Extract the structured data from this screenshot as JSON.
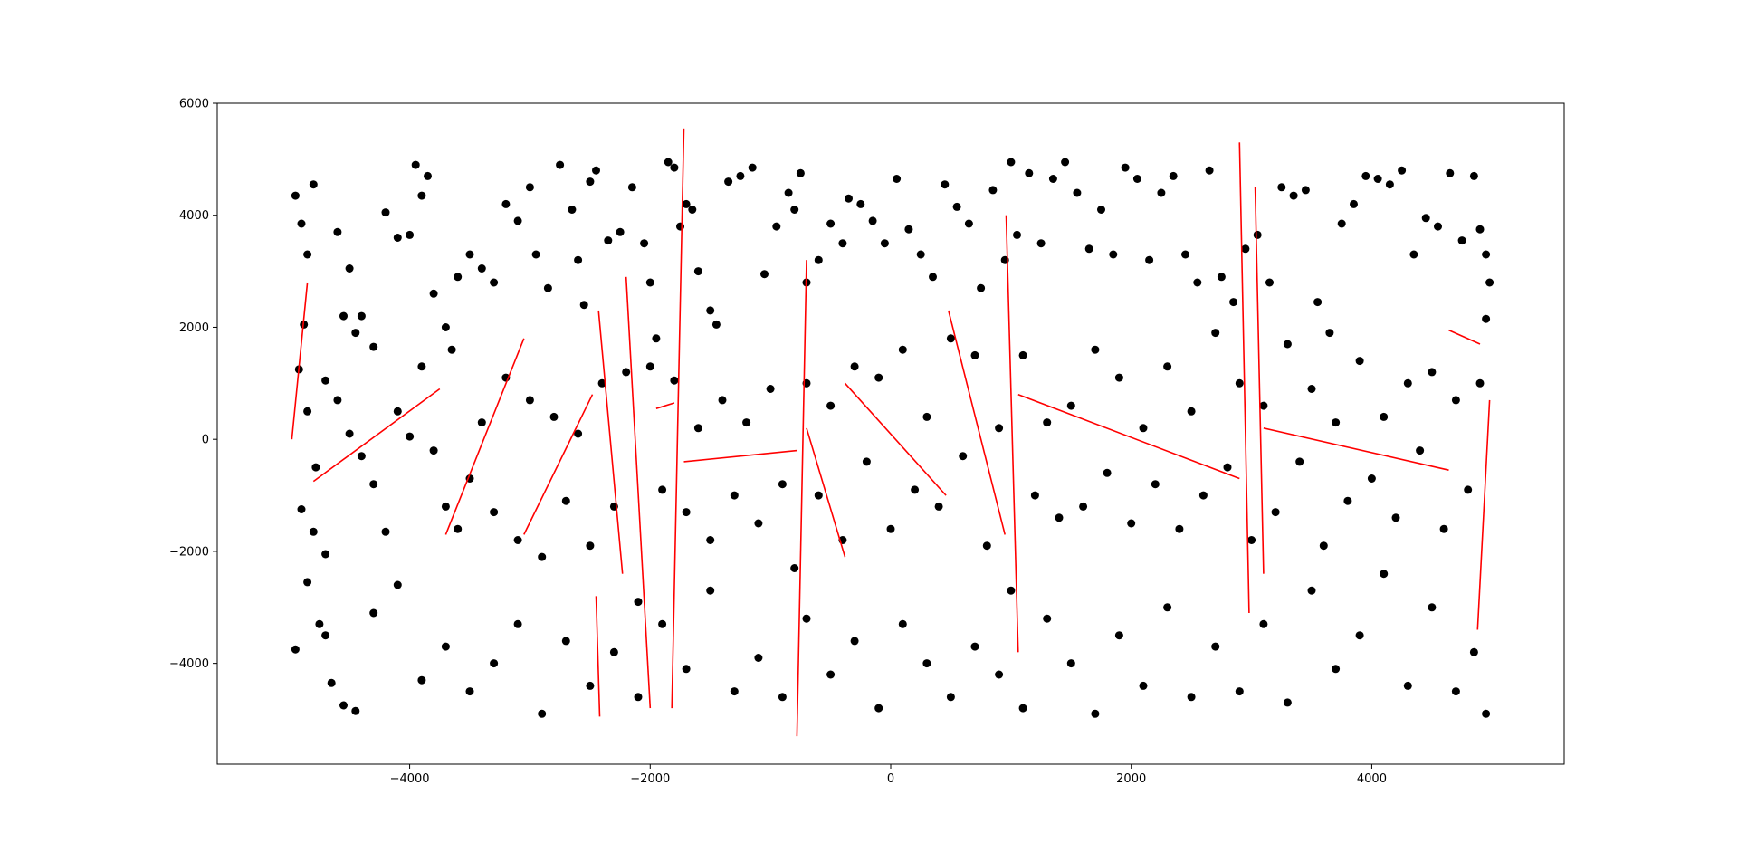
{
  "chart_data": {
    "type": "scatter",
    "title": "",
    "xlabel": "",
    "ylabel": "",
    "xlim": [
      -5600,
      5600
    ],
    "ylim": [
      -5800,
      6000
    ],
    "xticks": [
      -4000,
      -2000,
      0,
      2000,
      4000
    ],
    "xtick_labels": [
      "−4000",
      "−2000",
      "0",
      "2000",
      "4000"
    ],
    "yticks": [
      -4000,
      -2000,
      0,
      2000,
      4000,
      6000
    ],
    "ytick_labels": [
      "−4000",
      "−2000",
      "0",
      "2000",
      "4000",
      "6000"
    ],
    "grid": false,
    "legend": "none",
    "colors": {
      "points": "#000000",
      "lines": "#ff0000",
      "axes": "#000000",
      "background": "#ffffff"
    },
    "points": [
      [
        -4950,
        4350
      ],
      [
        -4900,
        3850
      ],
      [
        -4850,
        3300
      ],
      [
        -4800,
        4550
      ],
      [
        -4880,
        2050
      ],
      [
        -4920,
        1250
      ],
      [
        -4850,
        500
      ],
      [
        -4780,
        -500
      ],
      [
        -4900,
        -1250
      ],
      [
        -4800,
        -1650
      ],
      [
        -4700,
        -2050
      ],
      [
        -4950,
        -3750
      ],
      [
        -4850,
        -2550
      ],
      [
        -4750,
        -3300
      ],
      [
        -4700,
        -3500
      ],
      [
        -4650,
        -4350
      ],
      [
        -4550,
        -4750
      ],
      [
        -4450,
        -4850
      ],
      [
        -4600,
        3700
      ],
      [
        -4500,
        3050
      ],
      [
        -4400,
        2200
      ],
      [
        -4550,
        2200
      ],
      [
        -4450,
        1900
      ],
      [
        -4300,
        1650
      ],
      [
        -4200,
        4050
      ],
      [
        -4100,
        3600
      ],
      [
        -4000,
        3650
      ],
      [
        -3950,
        4900
      ],
      [
        -3850,
        4700
      ],
      [
        -3900,
        4350
      ],
      [
        -3800,
        2600
      ],
      [
        -3700,
        2000
      ],
      [
        -3650,
        1600
      ],
      [
        -3600,
        2900
      ],
      [
        -3500,
        3300
      ],
      [
        -3400,
        3050
      ],
      [
        -3300,
        2800
      ],
      [
        -3200,
        4200
      ],
      [
        -3100,
        3900
      ],
      [
        -3000,
        4500
      ],
      [
        -2950,
        3300
      ],
      [
        -2850,
        2700
      ],
      [
        -2750,
        4900
      ],
      [
        -2650,
        4100
      ],
      [
        -2600,
        3200
      ],
      [
        -2550,
        2400
      ],
      [
        -2500,
        4600
      ],
      [
        -2450,
        4800
      ],
      [
        -2350,
        3550
      ],
      [
        -2250,
        3700
      ],
      [
        -2150,
        4500
      ],
      [
        -2050,
        3500
      ],
      [
        -2000,
        2800
      ],
      [
        -1950,
        1800
      ],
      [
        -1850,
        4950
      ],
      [
        -1800,
        4850
      ],
      [
        -1750,
        3800
      ],
      [
        -1700,
        4200
      ],
      [
        -1650,
        4100
      ],
      [
        -1600,
        3000
      ],
      [
        -1500,
        2300
      ],
      [
        -1450,
        2050
      ],
      [
        -1350,
        4600
      ],
      [
        -1250,
        4700
      ],
      [
        -1150,
        4850
      ],
      [
        -1050,
        2950
      ],
      [
        -950,
        3800
      ],
      [
        -850,
        4400
      ],
      [
        -800,
        4100
      ],
      [
        -750,
        4750
      ],
      [
        -700,
        2800
      ],
      [
        -600,
        3200
      ],
      [
        -500,
        3850
      ],
      [
        -400,
        3500
      ],
      [
        -350,
        4300
      ],
      [
        -250,
        4200
      ],
      [
        -150,
        3900
      ],
      [
        -50,
        3500
      ],
      [
        50,
        4650
      ],
      [
        150,
        3750
      ],
      [
        250,
        3300
      ],
      [
        350,
        2900
      ],
      [
        450,
        4550
      ],
      [
        550,
        4150
      ],
      [
        650,
        3850
      ],
      [
        750,
        2700
      ],
      [
        850,
        4450
      ],
      [
        950,
        3200
      ],
      [
        1000,
        4950
      ],
      [
        1050,
        3650
      ],
      [
        1150,
        4750
      ],
      [
        1250,
        3500
      ],
      [
        1350,
        4650
      ],
      [
        1450,
        4950
      ],
      [
        1550,
        4400
      ],
      [
        1650,
        3400
      ],
      [
        1750,
        4100
      ],
      [
        1850,
        3300
      ],
      [
        1950,
        4850
      ],
      [
        2050,
        4650
      ],
      [
        2150,
        3200
      ],
      [
        2250,
        4400
      ],
      [
        2350,
        4700
      ],
      [
        2450,
        3300
      ],
      [
        2550,
        2800
      ],
      [
        2650,
        4800
      ],
      [
        2750,
        2900
      ],
      [
        2850,
        2450
      ],
      [
        2950,
        3400
      ],
      [
        3050,
        3650
      ],
      [
        3150,
        2800
      ],
      [
        3250,
        4500
      ],
      [
        3350,
        4350
      ],
      [
        3450,
        4450
      ],
      [
        3550,
        2450
      ],
      [
        3650,
        1900
      ],
      [
        3750,
        3850
      ],
      [
        3850,
        4200
      ],
      [
        3950,
        4700
      ],
      [
        4050,
        4650
      ],
      [
        4150,
        4550
      ],
      [
        4250,
        4800
      ],
      [
        4350,
        3300
      ],
      [
        4450,
        3950
      ],
      [
        4550,
        3800
      ],
      [
        4650,
        4750
      ],
      [
        4750,
        3550
      ],
      [
        4850,
        4700
      ],
      [
        4900,
        3750
      ],
      [
        4950,
        3300
      ],
      [
        4980,
        2800
      ],
      [
        4950,
        2150
      ],
      [
        -4700,
        1050
      ],
      [
        -4600,
        700
      ],
      [
        -4500,
        100
      ],
      [
        -4400,
        -300
      ],
      [
        -4300,
        -800
      ],
      [
        -4200,
        -1650
      ],
      [
        -4100,
        500
      ],
      [
        -4000,
        50
      ],
      [
        -3900,
        1300
      ],
      [
        -3800,
        -200
      ],
      [
        -3700,
        -1200
      ],
      [
        -3600,
        -1600
      ],
      [
        -3500,
        -700
      ],
      [
        -3400,
        300
      ],
      [
        -3300,
        -1300
      ],
      [
        -3200,
        1100
      ],
      [
        -3100,
        -1800
      ],
      [
        -3000,
        700
      ],
      [
        -2900,
        -2100
      ],
      [
        -2800,
        400
      ],
      [
        -2700,
        -1100
      ],
      [
        -2600,
        100
      ],
      [
        -2500,
        -1900
      ],
      [
        -2400,
        1000
      ],
      [
        -2300,
        -1200
      ],
      [
        -2200,
        1200
      ],
      [
        -2100,
        -2900
      ],
      [
        -2000,
        1300
      ],
      [
        -1900,
        -900
      ],
      [
        -1800,
        1050
      ],
      [
        -1700,
        -1300
      ],
      [
        -1600,
        200
      ],
      [
        -1500,
        -1800
      ],
      [
        -1400,
        700
      ],
      [
        -1300,
        -1000
      ],
      [
        -1200,
        300
      ],
      [
        -1100,
        -1500
      ],
      [
        -1000,
        900
      ],
      [
        -900,
        -800
      ],
      [
        -800,
        -2300
      ],
      [
        -700,
        1000
      ],
      [
        -600,
        -1000
      ],
      [
        -500,
        600
      ],
      [
        -400,
        -1800
      ],
      [
        -300,
        1300
      ],
      [
        -200,
        -400
      ],
      [
        -100,
        1100
      ],
      [
        0,
        -1600
      ],
      [
        100,
        1600
      ],
      [
        200,
        -900
      ],
      [
        300,
        400
      ],
      [
        400,
        -1200
      ],
      [
        500,
        1800
      ],
      [
        600,
        -300
      ],
      [
        700,
        1500
      ],
      [
        800,
        -1900
      ],
      [
        900,
        200
      ],
      [
        1000,
        -2700
      ],
      [
        1100,
        1500
      ],
      [
        1200,
        -1000
      ],
      [
        1300,
        300
      ],
      [
        1400,
        -1400
      ],
      [
        1500,
        600
      ],
      [
        1600,
        -1200
      ],
      [
        1700,
        1600
      ],
      [
        1800,
        -600
      ],
      [
        1900,
        1100
      ],
      [
        2000,
        -1500
      ],
      [
        2100,
        200
      ],
      [
        2200,
        -800
      ],
      [
        2300,
        1300
      ],
      [
        2400,
        -1600
      ],
      [
        2500,
        500
      ],
      [
        2600,
        -1000
      ],
      [
        2700,
        1900
      ],
      [
        2800,
        -500
      ],
      [
        2900,
        1000
      ],
      [
        3000,
        -1800
      ],
      [
        3100,
        600
      ],
      [
        3200,
        -1300
      ],
      [
        3300,
        1700
      ],
      [
        3400,
        -400
      ],
      [
        3500,
        900
      ],
      [
        3600,
        -1900
      ],
      [
        3700,
        300
      ],
      [
        3800,
        -1100
      ],
      [
        3900,
        1400
      ],
      [
        4000,
        -700
      ],
      [
        4100,
        400
      ],
      [
        4200,
        -1400
      ],
      [
        4300,
        1000
      ],
      [
        4400,
        -200
      ],
      [
        4500,
        1200
      ],
      [
        4600,
        -1600
      ],
      [
        4700,
        700
      ],
      [
        4800,
        -900
      ],
      [
        4900,
        1000
      ],
      [
        -4300,
        -3100
      ],
      [
        -4100,
        -2600
      ],
      [
        -3900,
        -4300
      ],
      [
        -3700,
        -3700
      ],
      [
        -3500,
        -4500
      ],
      [
        -3300,
        -4000
      ],
      [
        -3100,
        -3300
      ],
      [
        -2900,
        -4900
      ],
      [
        -2700,
        -3600
      ],
      [
        -2500,
        -4400
      ],
      [
        -2300,
        -3800
      ],
      [
        -2100,
        -4600
      ],
      [
        -1900,
        -3300
      ],
      [
        -1700,
        -4100
      ],
      [
        -1500,
        -2700
      ],
      [
        -1300,
        -4500
      ],
      [
        -1100,
        -3900
      ],
      [
        -900,
        -4600
      ],
      [
        -700,
        -3200
      ],
      [
        -500,
        -4200
      ],
      [
        -300,
        -3600
      ],
      [
        -100,
        -4800
      ],
      [
        100,
        -3300
      ],
      [
        300,
        -4000
      ],
      [
        500,
        -4600
      ],
      [
        700,
        -3700
      ],
      [
        900,
        -4200
      ],
      [
        1100,
        -4800
      ],
      [
        1300,
        -3200
      ],
      [
        1500,
        -4000
      ],
      [
        1700,
        -4900
      ],
      [
        1900,
        -3500
      ],
      [
        2100,
        -4400
      ],
      [
        2300,
        -3000
      ],
      [
        2500,
        -4600
      ],
      [
        2700,
        -3700
      ],
      [
        2900,
        -4500
      ],
      [
        3100,
        -3300
      ],
      [
        3300,
        -4700
      ],
      [
        3500,
        -2700
      ],
      [
        3700,
        -4100
      ],
      [
        3900,
        -3500
      ],
      [
        4100,
        -2400
      ],
      [
        4300,
        -4400
      ],
      [
        4500,
        -3000
      ],
      [
        4700,
        -4500
      ],
      [
        4850,
        -3800
      ],
      [
        4950,
        -4900
      ]
    ],
    "lines": [
      [
        [
          -4980,
          0
        ],
        [
          -4850,
          2800
        ]
      ],
      [
        [
          -4800,
          -750
        ],
        [
          -3750,
          900
        ]
      ],
      [
        [
          -3700,
          -1700
        ],
        [
          -3050,
          1800
        ]
      ],
      [
        [
          -3050,
          -1700
        ],
        [
          -2480,
          800
        ]
      ],
      [
        [
          -2450,
          -2800
        ],
        [
          -2420,
          -4950
        ]
      ],
      [
        [
          -2430,
          2300
        ],
        [
          -2230,
          -2400
        ]
      ],
      [
        [
          -2200,
          2900
        ],
        [
          -2000,
          -4800
        ]
      ],
      [
        [
          -1950,
          550
        ],
        [
          -1800,
          650
        ]
      ],
      [
        [
          -1820,
          -4800
        ],
        [
          -1720,
          5550
        ]
      ],
      [
        [
          -1720,
          -400
        ],
        [
          -780,
          -200
        ]
      ],
      [
        [
          -780,
          -5300
        ],
        [
          -700,
          3200
        ]
      ],
      [
        [
          -700,
          200
        ],
        [
          -380,
          -2100
        ]
      ],
      [
        [
          -380,
          1000
        ],
        [
          460,
          -1000
        ]
      ],
      [
        [
          480,
          2300
        ],
        [
          950,
          -1700
        ]
      ],
      [
        [
          960,
          4000
        ],
        [
          1060,
          -3800
        ]
      ],
      [
        [
          1060,
          800
        ],
        [
          2900,
          -700
        ]
      ],
      [
        [
          2900,
          5300
        ],
        [
          2980,
          -3100
        ]
      ],
      [
        [
          3030,
          4500
        ],
        [
          3100,
          -2400
        ]
      ],
      [
        [
          3100,
          200
        ],
        [
          4640,
          -550
        ]
      ],
      [
        [
          4640,
          1950
        ],
        [
          4900,
          1700
        ]
      ],
      [
        [
          4880,
          -3400
        ],
        [
          4980,
          700
        ]
      ]
    ]
  }
}
